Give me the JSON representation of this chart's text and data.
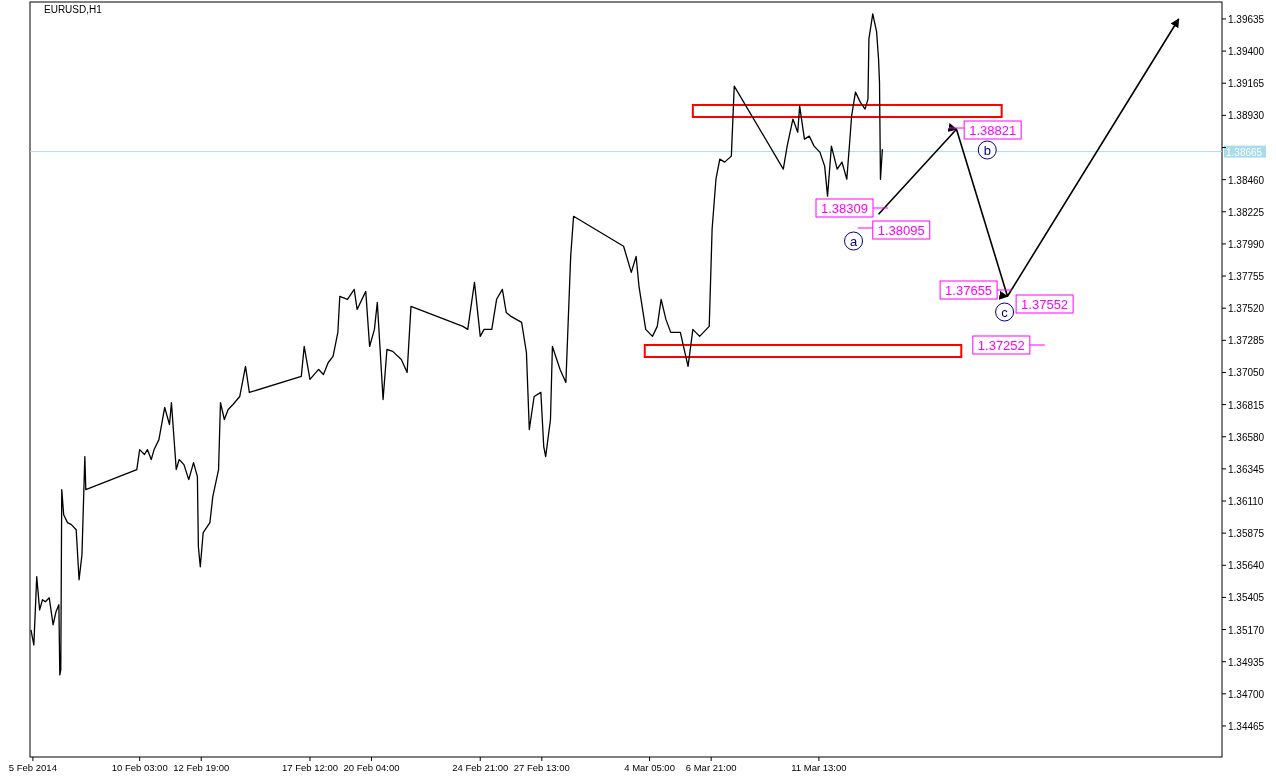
{
  "chart_data": {
    "type": "line",
    "title": "EURUSD,H1",
    "xlim": [
      "2014-02-05T09:00",
      "2014-03-29T00:00"
    ],
    "ylim": [
      1.34238,
      1.39759
    ],
    "xticks": [
      {
        "value": "2014-02-05T12:00",
        "label": "5 Feb 2014"
      },
      {
        "value": "2014-02-10T03:00",
        "label": "10 Feb 03:00"
      },
      {
        "value": "2014-02-12T19:00",
        "label": "12 Feb 19:00"
      },
      {
        "value": "2014-02-17T12:00",
        "label": "17 Feb 12:00"
      },
      {
        "value": "2014-02-20T04:00",
        "label": "20 Feb 04:00"
      },
      {
        "value": "2014-02-24T21:00",
        "label": "24 Feb 21:00"
      },
      {
        "value": "2014-02-27T13:00",
        "label": "27 Feb 13:00"
      },
      {
        "value": "2014-03-04T05:00",
        "label": "4 Mar 05:00"
      },
      {
        "value": "2014-03-06T21:00",
        "label": "6 Mar 21:00"
      },
      {
        "value": "2014-03-11T13:00",
        "label": "11 Mar 13:00"
      }
    ],
    "yticks": [
      {
        "value": 1.39635,
        "label": "1.39635"
      },
      {
        "value": 1.394,
        "label": "1.39400"
      },
      {
        "value": 1.39165,
        "label": "1.39165"
      },
      {
        "value": 1.3893,
        "label": "1.38930"
      },
      {
        "value": 1.38695,
        "label": null
      },
      {
        "value": 1.3846,
        "label": "1.38460"
      },
      {
        "value": 1.38225,
        "label": "1.38225"
      },
      {
        "value": 1.3799,
        "label": "1.37990"
      },
      {
        "value": 1.37755,
        "label": "1.37755"
      },
      {
        "value": 1.3752,
        "label": "1.37520"
      },
      {
        "value": 1.37285,
        "label": "1.37285"
      },
      {
        "value": 1.3705,
        "label": "1.37050"
      },
      {
        "value": 1.36815,
        "label": "1.36815"
      },
      {
        "value": 1.3658,
        "label": "1.36580"
      },
      {
        "value": 1.36345,
        "label": "1.36345"
      },
      {
        "value": 1.3611,
        "label": "1.36110"
      },
      {
        "value": 1.35875,
        "label": "1.35875"
      },
      {
        "value": 1.3564,
        "label": "1.35640"
      },
      {
        "value": 1.35405,
        "label": "1.35405"
      },
      {
        "value": 1.3517,
        "label": "1.35170"
      },
      {
        "value": 1.34935,
        "label": "1.34935"
      },
      {
        "value": 1.347,
        "label": "1.34700"
      },
      {
        "value": 1.34465,
        "label": "1.34465"
      }
    ],
    "series": [
      {
        "color": "#000000",
        "x": [
          "2014-02-05T10:00",
          "2014-02-05T13:00",
          "2014-02-05T16:00",
          "2014-02-05T19:00",
          "2014-02-05T22:00",
          "2014-02-06T01:00",
          "2014-02-06T05:00",
          "2014-02-06T09:00",
          "2014-02-06T12:00",
          "2014-02-06T15:00",
          "2014-02-06T16:00",
          "2014-02-06T17:00",
          "2014-02-06T18:00",
          "2014-02-06T20:00",
          "2014-02-07T00:00",
          "2014-02-07T04:00",
          "2014-02-07T09:00",
          "2014-02-07T12:00",
          "2014-02-07T15:00",
          "2014-02-07T18:00",
          "2014-02-07T19:00",
          "2014-02-10T00:00",
          "2014-02-10T03:00",
          "2014-02-10T08:00",
          "2014-02-10T11:00",
          "2014-02-10T15:00",
          "2014-02-10T18:00",
          "2014-02-10T23:00",
          "2014-02-11T05:00",
          "2014-02-11T10:00",
          "2014-02-11T12:00",
          "2014-02-11T17:00",
          "2014-02-11T20:00",
          "2014-02-12T01:00",
          "2014-02-12T06:00",
          "2014-02-12T11:00",
          "2014-02-12T15:00",
          "2014-02-12T16:00",
          "2014-02-12T18:00",
          "2014-02-12T21:00",
          "2014-02-13T04:00",
          "2014-02-13T07:00",
          "2014-02-13T13:00",
          "2014-02-13T15:00",
          "2014-02-13T19:00",
          "2014-02-13T23:00",
          "2014-02-14T04:00",
          "2014-02-14T11:00",
          "2014-02-14T17:00",
          "2014-02-14T21:00",
          "2014-02-17T03:00",
          "2014-02-17T06:00",
          "2014-02-17T12:00",
          "2014-02-17T21:00",
          "2014-02-18T02:00",
          "2014-02-18T07:00",
          "2014-02-18T12:00",
          "2014-02-18T17:00",
          "2014-02-18T19:00",
          "2014-02-19T03:00",
          "2014-02-19T10:00",
          "2014-02-19T13:00",
          "2014-02-19T22:00",
          "2014-02-20T02:00",
          "2014-02-20T07:00",
          "2014-02-20T10:00",
          "2014-02-20T16:00",
          "2014-02-20T20:00",
          "2014-02-21T02:00",
          "2014-02-21T11:00",
          "2014-02-21T17:00",
          "2014-02-21T21:00",
          "2014-02-24T03:00",
          "2014-02-24T08:00",
          "2014-02-24T15:00",
          "2014-02-24T21:00",
          "2014-02-25T01:00",
          "2014-02-25T09:00",
          "2014-02-25T14:00",
          "2014-02-25T20:00",
          "2014-02-26T00:00",
          "2014-02-26T05:00",
          "2014-02-26T16:00",
          "2014-02-26T21:00",
          "2014-02-27T00:00",
          "2014-02-27T05:00",
          "2014-02-27T12:00",
          "2014-02-27T15:00",
          "2014-02-27T17:00",
          "2014-02-27T22:00",
          "2014-02-28T00:00",
          "2014-02-28T08:00",
          "2014-02-28T14:00",
          "2014-02-28T19:00",
          "2014-02-28T22:00",
          "2014-03-03T02:00",
          "2014-03-03T10:00",
          "2014-03-03T15:00",
          "2014-03-03T18:00",
          "2014-03-04T01:00",
          "2014-03-04T08:00",
          "2014-03-04T13:00",
          "2014-03-04T17:00",
          "2014-03-04T22:00",
          "2014-03-05T03:00",
          "2014-03-05T13:00",
          "2014-03-05T21:00",
          "2014-03-06T02:00",
          "2014-03-06T09:00",
          "2014-03-06T19:00",
          "2014-03-06T22:00",
          "2014-03-07T02:00",
          "2014-03-07T06:00",
          "2014-03-07T11:00",
          "2014-03-07T18:00",
          "2014-03-07T21:00",
          "2014-03-10T00:00",
          "2014-03-10T04:00",
          "2014-03-10T10:00",
          "2014-03-10T15:00",
          "2014-03-10T17:00",
          "2014-03-10T22:00",
          "2014-03-11T03:00",
          "2014-03-11T08:00",
          "2014-03-11T14:00",
          "2014-03-11T19:00",
          "2014-03-11T22:00",
          "2014-03-12T02:00",
          "2014-03-12T08:00",
          "2014-03-12T13:00",
          "2014-03-12T18:00",
          "2014-03-12T21:00",
          "2014-03-12T23:00",
          "2014-03-13T03:00",
          "2014-03-13T08:00",
          "2014-03-13T13:00",
          "2014-03-13T16:00",
          "2014-03-13T17:00",
          "2014-03-13T21:00",
          "2014-03-14T01:00",
          "2014-03-14T03:00",
          "2014-03-14T04:00",
          "2014-03-14T05:00",
          "2014-03-14T07:00"
        ],
        "values": [
          1.35168,
          1.35058,
          1.35556,
          1.35314,
          1.35388,
          1.35373,
          1.35402,
          1.35205,
          1.353,
          1.35351,
          1.34838,
          1.34875,
          1.36193,
          1.3601,
          1.35952,
          1.35937,
          1.359,
          1.35534,
          1.35717,
          1.36435,
          1.36193,
          1.3634,
          1.36486,
          1.3645,
          1.36486,
          1.36413,
          1.36486,
          1.36559,
          1.36794,
          1.36669,
          1.3683,
          1.3634,
          1.36413,
          1.36376,
          1.36266,
          1.36391,
          1.36288,
          1.35776,
          1.35629,
          1.35878,
          1.35952,
          1.36142,
          1.3634,
          1.3683,
          1.36706,
          1.36779,
          1.36816,
          1.36874,
          1.37094,
          1.36904,
          1.37021,
          1.3724,
          1.36999,
          1.37072,
          1.37035,
          1.37123,
          1.37167,
          1.37343,
          1.37607,
          1.37585,
          1.37658,
          1.37511,
          1.37643,
          1.3724,
          1.37365,
          1.37563,
          1.36852,
          1.37218,
          1.37204,
          1.37145,
          1.3705,
          1.37533,
          1.37387,
          1.37365,
          1.37709,
          1.37314,
          1.37365,
          1.37365,
          1.37585,
          1.37658,
          1.37489,
          1.3746,
          1.37416,
          1.37196,
          1.36633,
          1.36874,
          1.36904,
          1.36508,
          1.36435,
          1.36706,
          1.3724,
          1.37072,
          1.36977,
          1.37899,
          1.38192,
          1.37973,
          1.37782,
          1.37899,
          1.3768,
          1.37365,
          1.37314,
          1.37387,
          1.37585,
          1.37438,
          1.37343,
          1.37343,
          1.37094,
          1.37365,
          1.37314,
          1.37387,
          1.38097,
          1.38463,
          1.3861,
          1.38588,
          1.38632,
          1.39144,
          1.38537,
          1.38705,
          1.38903,
          1.38807,
          1.38998,
          1.38756,
          1.38778,
          1.38705,
          1.38661,
          1.38559,
          1.38339,
          1.38705,
          1.38537,
          1.38588,
          1.38463,
          1.38734,
          1.38925,
          1.391,
          1.39027,
          1.38976,
          1.39049,
          1.39489,
          1.39672,
          1.3954,
          1.39342,
          1.39174,
          1.38463,
          1.38683
        ]
      },
      {
        "type": "line",
        "color": "#000000",
        "x": [
          "2014-03-14T03:00",
          "2014-03-17T12:00",
          "2014-03-19T17:00",
          "2014-03-27T03:00"
        ],
        "values": [
          1.38207,
          1.38829,
          1.37607,
          1.39635
        ]
      }
    ],
    "ref_lines": [
      {
        "axis": "y",
        "value": 1.38665,
        "label": "1.38665",
        "color": "#a8dce8"
      }
    ],
    "annotations": [
      "1.38309",
      "1.38821",
      "1.38095",
      "1.37655",
      "1.37552",
      "1.37252",
      "a",
      "b",
      "c"
    ]
  }
}
